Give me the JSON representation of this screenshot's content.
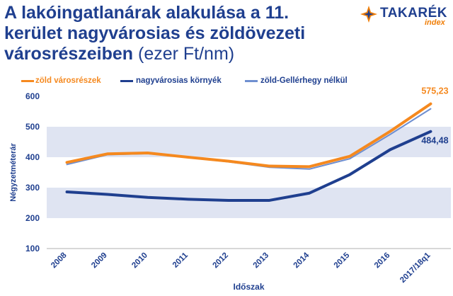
{
  "title": {
    "bold": "A lakóingatlanárak alakulása a 11. kerület nagyvárosias és zöldövezeti városrészeiben",
    "unit": " (ezer Ft/nm)"
  },
  "logo": {
    "name": "TAKARÉK",
    "sub": "index",
    "icon": "takarek-logo-icon"
  },
  "colors": {
    "orange": "#f5891f",
    "navy": "#1f3f8f",
    "light_blue": "#6f8fd0",
    "band": "#dfe4f2"
  },
  "chart_data": {
    "type": "line",
    "categories": [
      "2008",
      "2009",
      "2010",
      "2011",
      "2012",
      "2013",
      "2014",
      "2015",
      "2016",
      "2017/18q1"
    ],
    "xlabel": "Időszak",
    "ylabel": "Négyzetméterár",
    "ylim": [
      100,
      600
    ],
    "yticks": [
      100,
      200,
      300,
      400,
      500,
      600
    ],
    "grid": "alternating horizontal bands",
    "legend": "top",
    "series": [
      {
        "name": "zöld városrészek",
        "color": "#f5891f",
        "values": [
          383,
          411,
          414,
          400,
          387,
          371,
          369,
          403,
          485,
          575.23
        ]
      },
      {
        "name": "nagyvárosias környék",
        "color": "#1f3f8f",
        "values": [
          286,
          278,
          268,
          262,
          258,
          258,
          282,
          343,
          425,
          484.48
        ]
      },
      {
        "name": "zöld-Gellérhegy nélkül",
        "color": "#6f8fd0",
        "values": [
          376,
          408,
          412,
          399,
          385,
          367,
          361,
          395,
          475,
          559
        ]
      }
    ],
    "annotations": [
      {
        "text": "575,23",
        "series": 0,
        "index": 9,
        "color": "#f5891f"
      },
      {
        "text": "484,48",
        "series": 1,
        "index": 9,
        "color": "#1f3f8f"
      }
    ]
  }
}
